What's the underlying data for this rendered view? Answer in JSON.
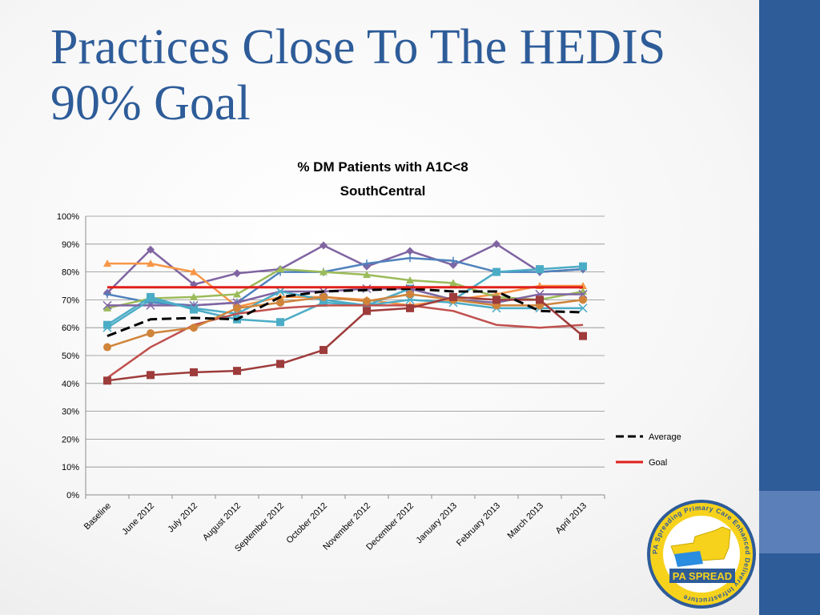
{
  "slide": {
    "title_line1": "Practices Close To The HEDIS",
    "title_line2": "90% Goal"
  },
  "colors": {
    "sidebar": "#2e5c99",
    "sidebar_accent": "#5b7fb8",
    "title": "#2e5c99"
  },
  "logo": {
    "text_main": "PA SPREAD",
    "text_ring": "PA Spreading Primary Care Enhanced Delivery Infrastructure"
  },
  "chart_data": {
    "type": "line",
    "title_line1": "% DM Patients with A1C<8",
    "title_line2": "SouthCentral",
    "categories": [
      "Baseline",
      "June 2012",
      "July 2012",
      "August 2012",
      "September 2012",
      "October 2012",
      "November 2012",
      "December 2012",
      "January 2013",
      "February 2013",
      "March 2013",
      "April 2013"
    ],
    "ylim": [
      0,
      100
    ],
    "yticks": [
      "0%",
      "10%",
      "20%",
      "30%",
      "40%",
      "50%",
      "60%",
      "70%",
      "80%",
      "90%",
      "100%"
    ],
    "grid": true,
    "legend_position": "right",
    "series": [
      {
        "name": "",
        "color": "#8064a2",
        "marker": "diamond",
        "values": [
          72.5,
          88,
          75.5,
          79.5,
          81,
          89.5,
          82,
          87.5,
          82.5,
          90,
          80,
          81
        ]
      },
      {
        "name": "",
        "color": "#4f81bd",
        "marker": "plus",
        "values": [
          72,
          69,
          68,
          69,
          80,
          80,
          83,
          85,
          84,
          80,
          80,
          81
        ]
      },
      {
        "name": "",
        "color": "#f79646",
        "marker": "triangle",
        "values": [
          83,
          83,
          80,
          67.5,
          71,
          71,
          70,
          68,
          70,
          72,
          75,
          75
        ]
      },
      {
        "name": "",
        "color": "#9bbb59",
        "marker": "triangle",
        "values": [
          67,
          70.5,
          71,
          72,
          81,
          80,
          79,
          77,
          76,
          71,
          70,
          73
        ]
      },
      {
        "name": "",
        "color": "#4bacc6",
        "marker": "square",
        "values": [
          61,
          71,
          66.5,
          63,
          62,
          69,
          68,
          74,
          70,
          80,
          81,
          82
        ]
      },
      {
        "name": "",
        "color": "#8064a2",
        "marker": "x",
        "values": [
          68,
          68,
          68,
          69,
          73,
          73,
          74,
          74,
          70,
          69,
          72,
          72
        ]
      },
      {
        "name": "",
        "color": "#4bacc6",
        "marker": "x",
        "values": [
          60,
          70,
          67,
          65,
          73,
          70,
          68,
          70,
          69,
          67,
          67,
          67
        ]
      },
      {
        "name": "",
        "color": "#c0504d",
        "marker": "none",
        "values": [
          42,
          53,
          61,
          65,
          67,
          68,
          68,
          68,
          66,
          61,
          60,
          61
        ]
      },
      {
        "name": "",
        "color": "#d0843a",
        "marker": "circle",
        "values": [
          53,
          58,
          60,
          67,
          69,
          71,
          69.5,
          72,
          70,
          68,
          68,
          70
        ]
      },
      {
        "name": "",
        "color": "#9e3b3b",
        "marker": "square",
        "values": [
          41,
          43,
          44,
          44.5,
          47,
          52,
          66,
          67,
          71,
          70,
          70,
          57
        ]
      },
      {
        "name": "Average",
        "color": "#000000",
        "marker": "none",
        "dashed": true,
        "values": [
          57,
          63,
          63.5,
          63,
          71,
          73,
          73.5,
          74,
          73,
          73,
          66,
          65.5
        ]
      },
      {
        "name": "Goal",
        "color": "#e0201b",
        "marker": "none",
        "values": [
          74.5,
          74.5,
          74.5,
          74.5,
          74.5,
          74.5,
          74.5,
          74.5,
          74.5,
          74.5,
          74.5,
          74.5
        ]
      }
    ]
  }
}
